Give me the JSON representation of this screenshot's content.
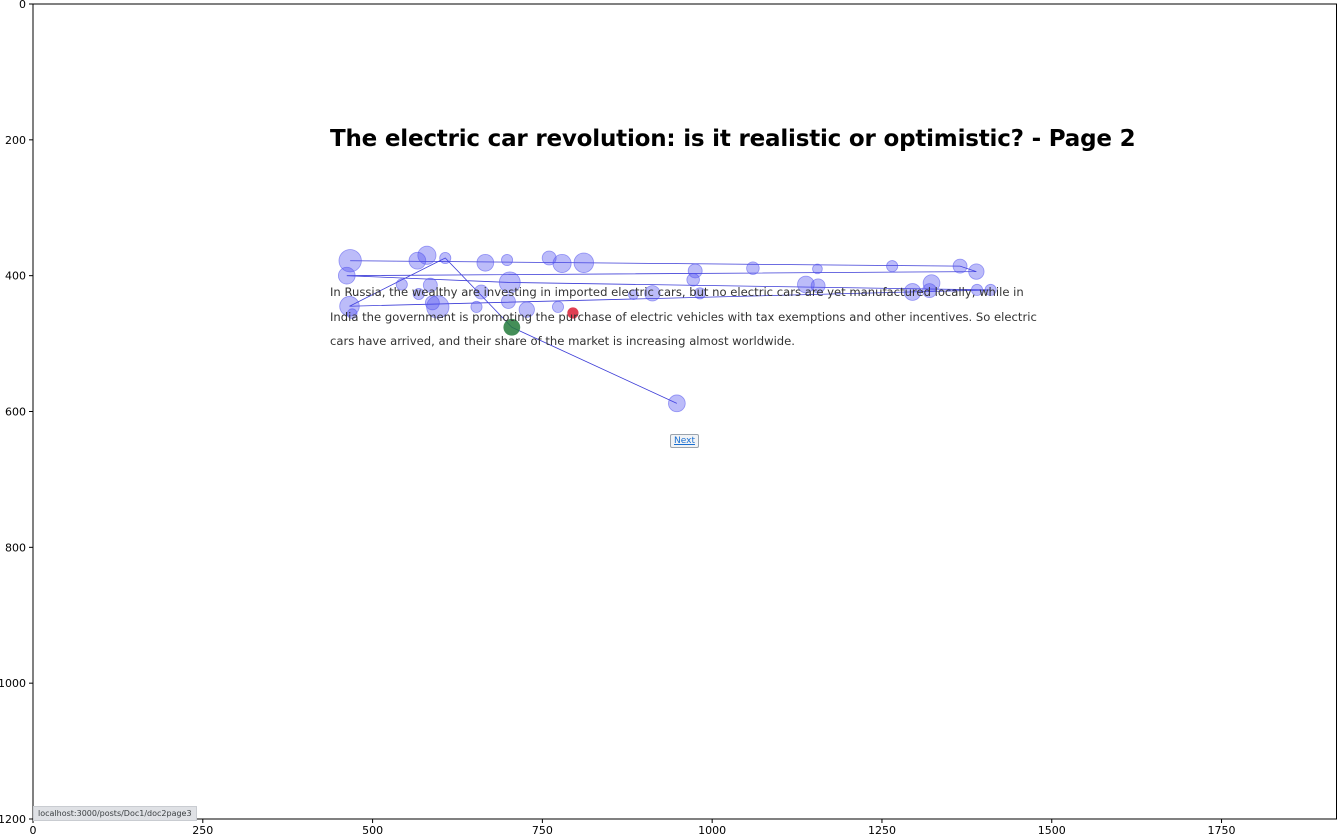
{
  "page": {
    "title": "The electric car revolution: is it realistic or optimistic? - Page 2",
    "paragraph": "In Russia, the wealthy are investing in imported electric cars, but no electric cars are yet manufactured locally, while in India the government is promoting the purchase of electric vehicles with tax exemptions and other incentives. So electric cars have arrived, and their share of the market is increasing almost worldwide.",
    "next_label": "Next"
  },
  "status_bar": {
    "url": "localhost:3000/posts/Doc1/doc2page3"
  },
  "chart_data": {
    "type": "scatter",
    "title": "",
    "xlabel": "",
    "ylabel": "",
    "xlim": [
      0,
      1920
    ],
    "ylim": [
      1200,
      0
    ],
    "x_ticks": [
      0,
      250,
      500,
      750,
      1000,
      1250,
      1500,
      1750
    ],
    "y_ticks": [
      0,
      200,
      400,
      600,
      800,
      1000,
      1200
    ],
    "grid": false,
    "colors": {
      "fixation": "#5050ee",
      "path": "#1a1ad0",
      "start": "#237a3b",
      "end": "#dc2a3f"
    },
    "start_point": {
      "x": 705,
      "y": 476,
      "r": 12
    },
    "end_point": {
      "x": 795,
      "y": 455,
      "r": 8
    },
    "fixations": [
      {
        "x": 467,
        "y": 378,
        "r": 16
      },
      {
        "x": 580,
        "y": 370,
        "r": 13
      },
      {
        "x": 566,
        "y": 378,
        "r": 12
      },
      {
        "x": 607,
        "y": 374,
        "r": 8
      },
      {
        "x": 666,
        "y": 381,
        "r": 12
      },
      {
        "x": 698,
        "y": 377,
        "r": 8
      },
      {
        "x": 760,
        "y": 374,
        "r": 10
      },
      {
        "x": 779,
        "y": 382,
        "r": 13
      },
      {
        "x": 811,
        "y": 381,
        "r": 14
      },
      {
        "x": 975,
        "y": 393,
        "r": 10
      },
      {
        "x": 1060,
        "y": 389,
        "r": 9
      },
      {
        "x": 1155,
        "y": 390,
        "r": 7
      },
      {
        "x": 1265,
        "y": 386,
        "r": 8
      },
      {
        "x": 1365,
        "y": 386,
        "r": 10
      },
      {
        "x": 1389,
        "y": 394,
        "r": 11
      },
      {
        "x": 462,
        "y": 400,
        "r": 12
      },
      {
        "x": 543,
        "y": 413,
        "r": 8
      },
      {
        "x": 585,
        "y": 414,
        "r": 10
      },
      {
        "x": 702,
        "y": 410,
        "r": 15
      },
      {
        "x": 972,
        "y": 406,
        "r": 9
      },
      {
        "x": 1138,
        "y": 413,
        "r": 12
      },
      {
        "x": 1156,
        "y": 415,
        "r": 10
      },
      {
        "x": 1323,
        "y": 411,
        "r": 12
      },
      {
        "x": 1410,
        "y": 421,
        "r": 8
      },
      {
        "x": 568,
        "y": 427,
        "r": 8
      },
      {
        "x": 660,
        "y": 424,
        "r": 10
      },
      {
        "x": 884,
        "y": 428,
        "r": 7
      },
      {
        "x": 912,
        "y": 426,
        "r": 11
      },
      {
        "x": 982,
        "y": 426,
        "r": 8
      },
      {
        "x": 1295,
        "y": 424,
        "r": 12
      },
      {
        "x": 1320,
        "y": 422,
        "r": 10
      },
      {
        "x": 1390,
        "y": 421,
        "r": 8
      },
      {
        "x": 466,
        "y": 445,
        "r": 14
      },
      {
        "x": 596,
        "y": 446,
        "r": 16
      },
      {
        "x": 588,
        "y": 440,
        "r": 10
      },
      {
        "x": 653,
        "y": 446,
        "r": 8
      },
      {
        "x": 700,
        "y": 438,
        "r": 10
      },
      {
        "x": 727,
        "y": 450,
        "r": 11
      },
      {
        "x": 773,
        "y": 446,
        "r": 8
      },
      {
        "x": 470,
        "y": 456,
        "r": 7
      },
      {
        "x": 948,
        "y": 588,
        "r": 12
      }
    ],
    "path": [
      [
        467,
        378
      ],
      [
        1365,
        386
      ],
      [
        1389,
        394
      ],
      [
        462,
        400
      ],
      [
        702,
        410
      ],
      [
        1410,
        421
      ],
      [
        466,
        445
      ],
      [
        607,
        374
      ],
      [
        705,
        476
      ],
      [
        948,
        588
      ]
    ]
  }
}
